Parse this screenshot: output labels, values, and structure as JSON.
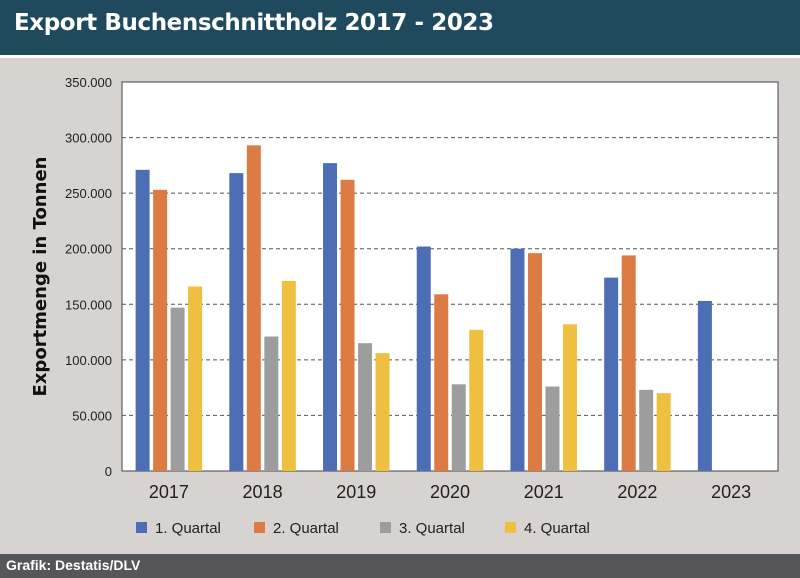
{
  "title": "Export Buchenschnittholz 2017 - 2023",
  "source": "Grafik: Destatis/DLV",
  "chart_data": {
    "type": "bar",
    "title": "Export Buchenschnittholz 2017 - 2023",
    "ylabel": "Exportmenge in Tonnen",
    "xlabel": "",
    "categories": [
      "2017",
      "2018",
      "2019",
      "2020",
      "2021",
      "2022",
      "2023"
    ],
    "ylim": [
      0,
      350000
    ],
    "yticks": [
      0,
      50000,
      100000,
      150000,
      200000,
      250000,
      300000,
      350000
    ],
    "ytick_labels": [
      "0",
      "50.000",
      "100.000",
      "150.000",
      "200.000",
      "250.000",
      "300.000",
      "350.000"
    ],
    "grid": "horizontal dashed",
    "legend": "bottom",
    "series": [
      {
        "name": "1. Quartal",
        "color": "#4d6db5",
        "values": [
          271000,
          268000,
          277000,
          202000,
          200000,
          174000,
          153000
        ]
      },
      {
        "name": "2. Quartal",
        "color": "#dd7b45",
        "values": [
          253000,
          293000,
          262000,
          159000,
          196000,
          194000,
          null
        ]
      },
      {
        "name": "3. Quartal",
        "color": "#9d9d9d",
        "values": [
          147000,
          121000,
          115000,
          78000,
          76000,
          73000,
          null
        ]
      },
      {
        "name": "4. Quartal",
        "color": "#efbf3f",
        "values": [
          166000,
          171000,
          106000,
          127000,
          132000,
          70000,
          null
        ]
      }
    ]
  }
}
